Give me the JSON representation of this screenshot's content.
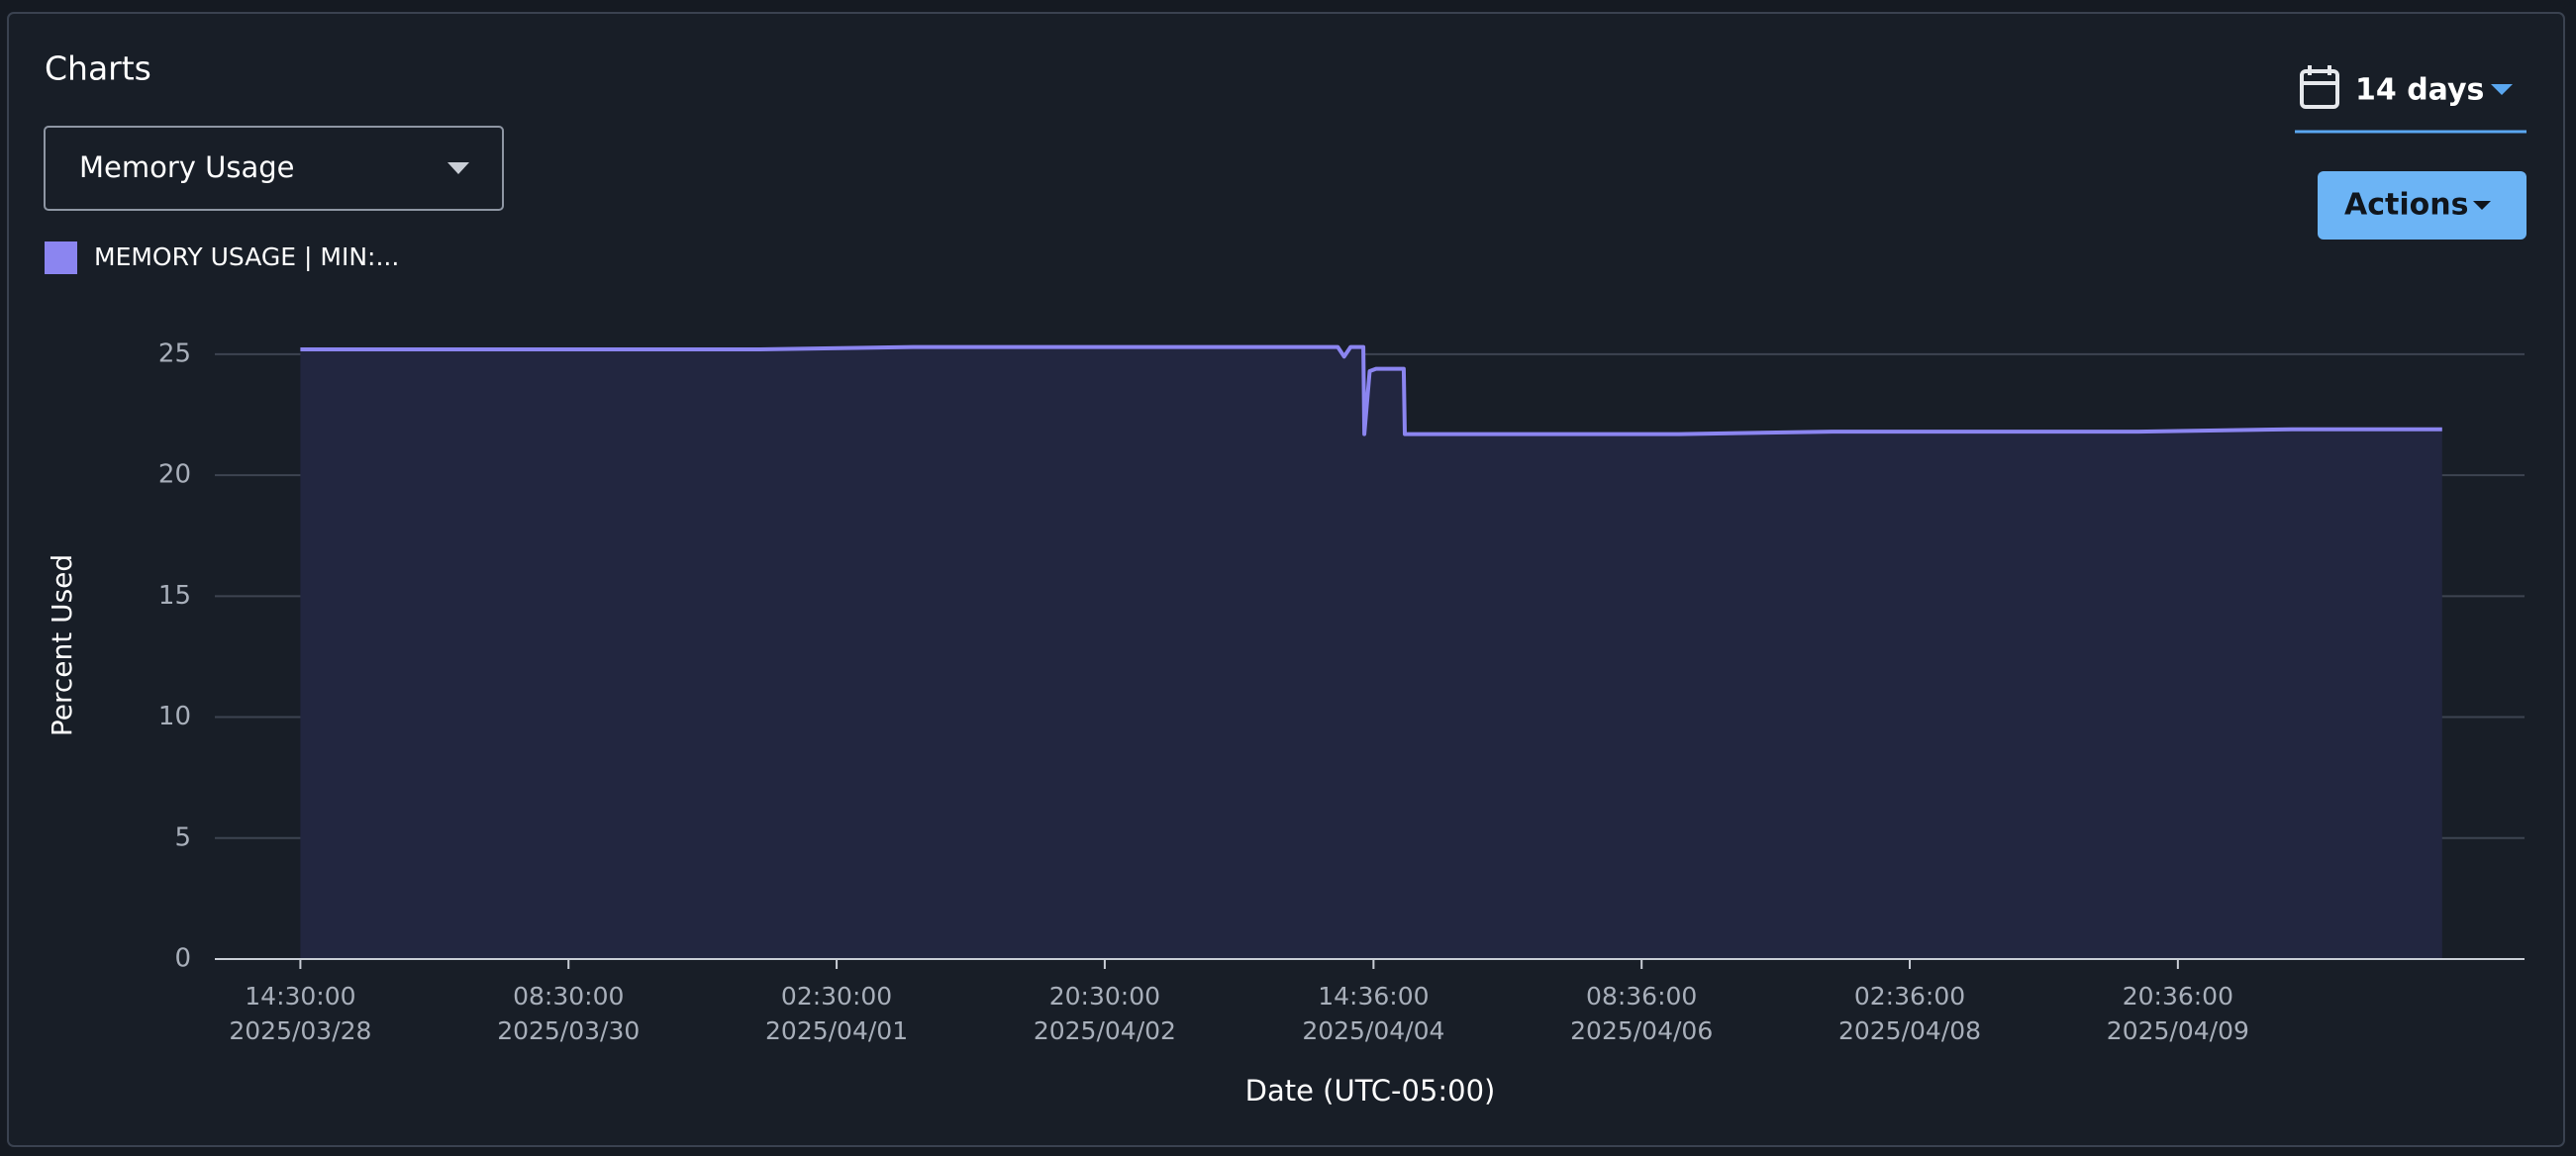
{
  "header": {
    "title": "Charts",
    "metric_select": "Memory Usage",
    "range": "14 days",
    "actions": "Actions"
  },
  "chart_data": {
    "type": "line",
    "x_label": "Date (UTC-05:00)",
    "y_label": "Percent Used",
    "x": [
      "2025/03/28 14:30",
      "2025/03/29 14:30",
      "2025/03/30 14:30",
      "2025/03/31 14:30",
      "2025/04/01 14:30",
      "2025/04/02 14:30",
      "2025/04/03 14:30",
      "2025/04/04 09:00",
      "2025/04/04 10:00",
      "2025/04/04 11:00",
      "2025/04/04 13:00",
      "2025/04/04 13:10",
      "2025/04/04 14:00",
      "2025/04/04 15:00",
      "2025/04/04 19:20",
      "2025/04/04 19:30",
      "2025/04/05 14:30",
      "2025/04/06 14:30",
      "2025/04/07 14:30",
      "2025/04/08 14:30",
      "2025/04/09 14:30",
      "2025/04/10 14:30",
      "2025/04/11 14:00"
    ],
    "series": [
      {
        "name": "MEMORY USAGE | MIN:...",
        "color": "#8b85f0",
        "values": [
          25.2,
          25.2,
          25.2,
          25.2,
          25.3,
          25.3,
          25.3,
          25.3,
          24.9,
          25.3,
          25.3,
          21.7,
          24.3,
          24.4,
          24.4,
          21.7,
          21.7,
          21.7,
          21.8,
          21.8,
          21.8,
          21.9,
          21.9
        ]
      }
    ],
    "area_color": "#222640",
    "xlim": [
      "2025/03/28 01:06",
      "2025/04/12 02:54"
    ],
    "xticks": [
      {
        "value": "2025/03/28 14:30",
        "label": [
          "14:30:00",
          "2025/03/28"
        ]
      },
      {
        "value": "2025/03/30 08:30",
        "label": [
          "08:30:00",
          "2025/03/30"
        ]
      },
      {
        "value": "2025/04/01 02:30",
        "label": [
          "02:30:00",
          "2025/04/01"
        ]
      },
      {
        "value": "2025/04/02 20:30",
        "label": [
          "20:30:00",
          "2025/04/02"
        ]
      },
      {
        "value": "2025/04/04 14:36",
        "label": [
          "14:36:00",
          "2025/04/04"
        ]
      },
      {
        "value": "2025/04/06 08:36",
        "label": [
          "08:36:00",
          "2025/04/06"
        ]
      },
      {
        "value": "2025/04/08 02:36",
        "label": [
          "02:36:00",
          "2025/04/08"
        ]
      },
      {
        "value": "2025/04/09 20:36",
        "label": [
          "20:36:00",
          "2025/04/09"
        ]
      }
    ],
    "ylim": [
      0,
      27
    ],
    "yticks": [
      0,
      5,
      10,
      15,
      20,
      25
    ],
    "grid": true
  }
}
